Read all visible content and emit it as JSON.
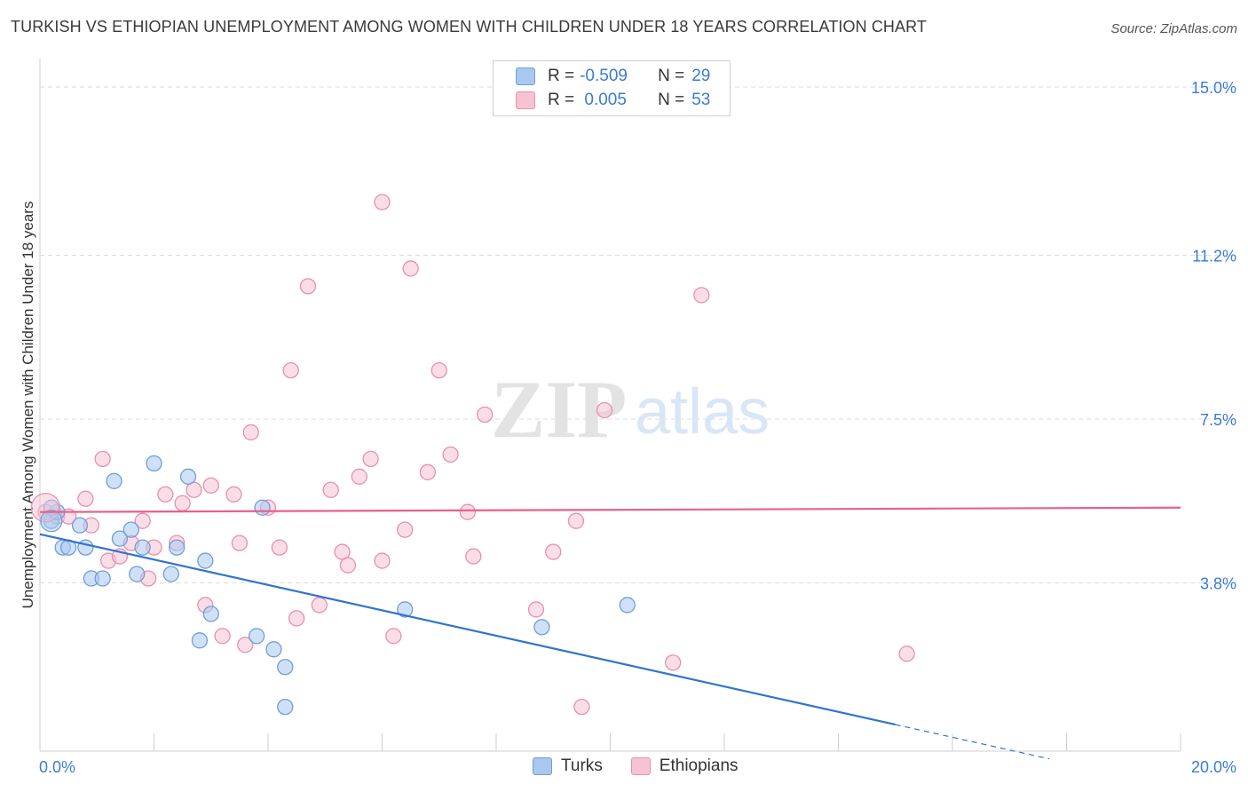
{
  "title": "TURKISH VS ETHIOPIAN UNEMPLOYMENT AMONG WOMEN WITH CHILDREN UNDER 18 YEARS CORRELATION CHART",
  "source": "Source: ZipAtlas.com",
  "watermark": {
    "zip": "ZIP",
    "atlas": "atlas"
  },
  "legend_top": {
    "rows": [
      {
        "r_label": "R = ",
        "r_value": "-0.509",
        "n_label": "N = ",
        "n_value": "29"
      },
      {
        "r_label": "R = ",
        "r_value": " 0.005",
        "n_label": "N = ",
        "n_value": "53"
      }
    ]
  },
  "colors": {
    "turks_fill": "#a9c8f0",
    "turks_stroke": "#6f9fd8",
    "turks_line": "#2f74d0",
    "eth_fill": "#f6c3d3",
    "eth_stroke": "#e890ad",
    "eth_line": "#e8608a",
    "axis_value": "#3a7bd5",
    "grid": "#dcdcdc"
  },
  "chart_data": {
    "type": "scatter",
    "title": "TURKISH VS ETHIOPIAN UNEMPLOYMENT AMONG WOMEN WITH CHILDREN UNDER 18 YEARS CORRELATION CHART",
    "xlabel": "",
    "ylabel": "Unemployment Among Women with Children Under 18 years",
    "xlim": [
      0,
      20
    ],
    "ylim": [
      0,
      15.4
    ],
    "x_tick_labels": [
      "0.0%",
      "20.0%"
    ],
    "y_ticks": [
      3.8,
      7.5,
      11.2,
      15.0
    ],
    "y_tick_labels": [
      "3.8%",
      "7.5%",
      "11.2%",
      "15.0%"
    ],
    "grid": true,
    "legend_position": "bottom",
    "series": [
      {
        "name": "Turks",
        "r": -0.509,
        "n": 29,
        "trend": {
          "x0": 0,
          "y0": 4.9,
          "x1": 15.0,
          "y1": 0.6,
          "dash_to_x": 17.7
        },
        "points": [
          [
            0.2,
            5.2
          ],
          [
            0.3,
            5.4
          ],
          [
            0.4,
            4.6
          ],
          [
            0.5,
            4.6
          ],
          [
            0.7,
            5.1
          ],
          [
            0.8,
            4.6
          ],
          [
            0.9,
            3.9
          ],
          [
            1.1,
            3.9
          ],
          [
            1.3,
            6.1
          ],
          [
            1.4,
            4.8
          ],
          [
            1.6,
            5.0
          ],
          [
            1.7,
            4.0
          ],
          [
            1.8,
            4.6
          ],
          [
            2.0,
            6.5
          ],
          [
            2.3,
            4.0
          ],
          [
            2.4,
            4.6
          ],
          [
            2.6,
            6.2
          ],
          [
            2.8,
            2.5
          ],
          [
            2.9,
            4.3
          ],
          [
            3.0,
            3.1
          ],
          [
            3.8,
            2.6
          ],
          [
            3.9,
            5.5
          ],
          [
            4.1,
            2.3
          ],
          [
            4.3,
            1.0
          ],
          [
            4.3,
            1.9
          ],
          [
            6.4,
            3.2
          ],
          [
            8.8,
            2.8
          ],
          [
            10.3,
            3.3
          ],
          [
            0.2,
            5.5
          ]
        ]
      },
      {
        "name": "Ethiopians",
        "r": 0.005,
        "n": 53,
        "trend": {
          "x0": 0,
          "y0": 5.4,
          "x1": 20,
          "y1": 5.5
        },
        "points": [
          [
            0.1,
            5.4
          ],
          [
            0.3,
            5.3
          ],
          [
            0.5,
            5.3
          ],
          [
            0.8,
            5.7
          ],
          [
            0.9,
            5.1
          ],
          [
            1.1,
            6.6
          ],
          [
            1.2,
            4.3
          ],
          [
            1.4,
            4.4
          ],
          [
            1.6,
            4.7
          ],
          [
            1.8,
            5.2
          ],
          [
            1.9,
            3.9
          ],
          [
            2.0,
            4.6
          ],
          [
            2.2,
            5.8
          ],
          [
            2.4,
            4.7
          ],
          [
            2.5,
            5.6
          ],
          [
            2.7,
            5.9
          ],
          [
            2.9,
            3.3
          ],
          [
            3.0,
            6.0
          ],
          [
            3.2,
            2.6
          ],
          [
            3.4,
            5.8
          ],
          [
            3.5,
            4.7
          ],
          [
            3.6,
            2.4
          ],
          [
            3.7,
            7.2
          ],
          [
            4.0,
            5.5
          ],
          [
            4.2,
            4.6
          ],
          [
            4.4,
            8.6
          ],
          [
            4.5,
            3.0
          ],
          [
            4.7,
            10.5
          ],
          [
            4.9,
            3.3
          ],
          [
            5.1,
            5.9
          ],
          [
            5.3,
            4.5
          ],
          [
            5.4,
            4.2
          ],
          [
            5.6,
            6.2
          ],
          [
            5.8,
            6.6
          ],
          [
            6.0,
            4.3
          ],
          [
            6.0,
            12.4
          ],
          [
            6.2,
            2.6
          ],
          [
            6.4,
            5.0
          ],
          [
            6.5,
            10.9
          ],
          [
            6.8,
            6.3
          ],
          [
            7.0,
            8.6
          ],
          [
            7.2,
            6.7
          ],
          [
            7.5,
            5.4
          ],
          [
            7.6,
            4.4
          ],
          [
            7.8,
            7.6
          ],
          [
            8.7,
            3.2
          ],
          [
            9.0,
            4.5
          ],
          [
            9.5,
            1.0
          ],
          [
            9.4,
            5.2
          ],
          [
            9.9,
            7.7
          ],
          [
            11.1,
            2.0
          ],
          [
            11.6,
            10.3
          ],
          [
            15.2,
            2.2
          ]
        ]
      }
    ]
  }
}
